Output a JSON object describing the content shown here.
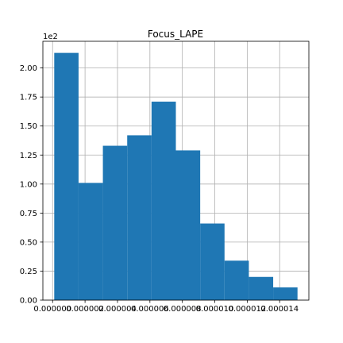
{
  "chart_data": {
    "type": "bar",
    "title": "Focus_LAPE",
    "xlabel": "",
    "ylabel": "",
    "y_offset_text": "1e2",
    "bin_edges": [
      1e-07,
      1.6e-06,
      3.1e-06,
      4.6e-06,
      6.1e-06,
      7.6e-06,
      9.1e-06,
      1.06e-05,
      1.21e-05,
      1.36e-05,
      1.51e-05
    ],
    "values": [
      213,
      101,
      133,
      142,
      171,
      129,
      66,
      34,
      20,
      11
    ],
    "xlim": [
      -6e-07,
      1.58e-05
    ],
    "ylim": [
      0,
      223
    ],
    "x_ticks": [
      0,
      2e-06,
      4e-06,
      6e-06,
      8e-06,
      1e-05,
      1.2e-05,
      1.4e-05
    ],
    "x_tick_labels": [
      "0.000000",
      "0.000002",
      "0.000004",
      "0.000006",
      "0.000008",
      "0.000010",
      "0.000012",
      "0.000014"
    ],
    "y_ticks": [
      0,
      25,
      50,
      75,
      100,
      125,
      150,
      175,
      200
    ],
    "y_tick_labels": [
      "0.00",
      "0.25",
      "0.50",
      "0.75",
      "1.00",
      "1.25",
      "1.50",
      "1.75",
      "2.00"
    ],
    "grid": true,
    "bar_color": "#1f77b4"
  }
}
